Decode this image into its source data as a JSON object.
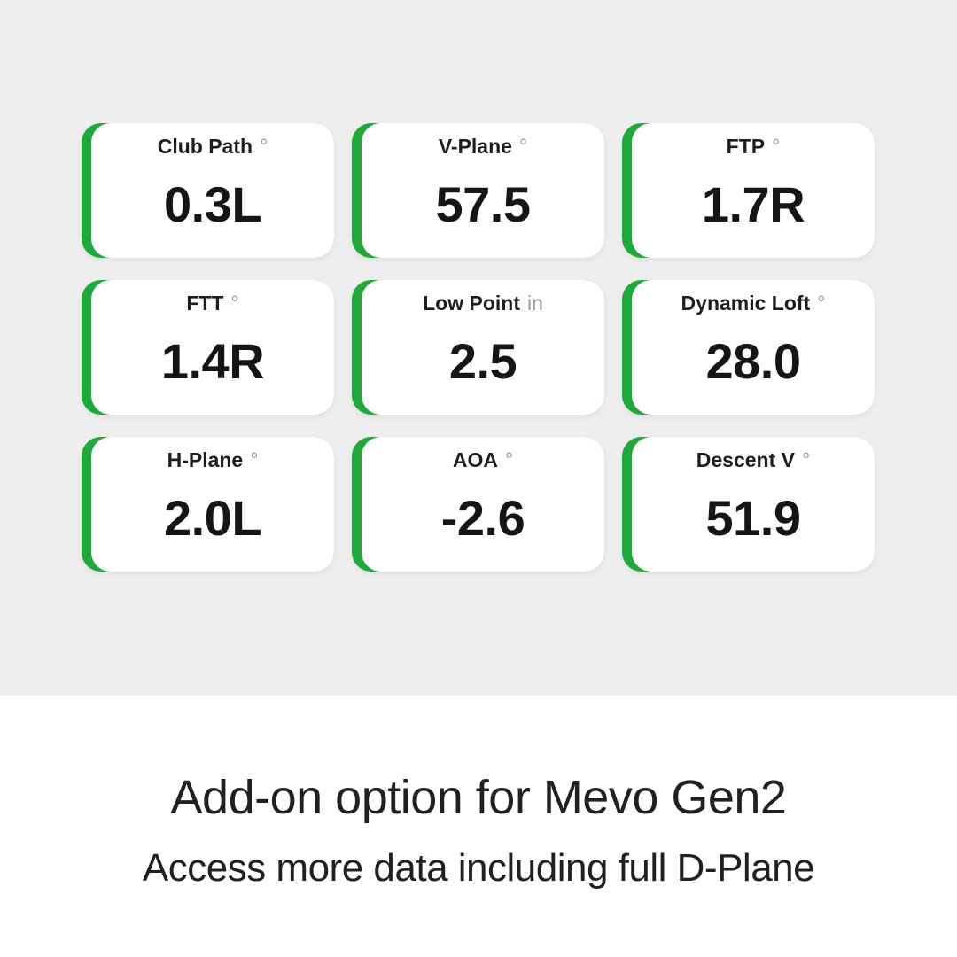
{
  "colors": {
    "background_top": "#eeeeee",
    "background_bottom": "#ffffff",
    "accent_green": "#21A83C",
    "card_background": "#ffffff",
    "label_text": "#1d1d1f",
    "value_text": "#151515",
    "unit_text": "#9b9b9b",
    "heading_text": "#1f2023"
  },
  "metrics": [
    {
      "label": "Club Path",
      "unit": "°",
      "value": "0.3L"
    },
    {
      "label": "V-Plane",
      "unit": "°",
      "value": "57.5"
    },
    {
      "label": "FTP",
      "unit": "°",
      "value": "1.7R"
    },
    {
      "label": "FTT",
      "unit": "°",
      "value": "1.4R"
    },
    {
      "label": "Low Point",
      "unit": "in",
      "value": "2.5"
    },
    {
      "label": "Dynamic Loft",
      "unit": "°",
      "value": "28.0"
    },
    {
      "label": "H-Plane",
      "unit": "°",
      "value": "2.0L"
    },
    {
      "label": "AOA",
      "unit": "°",
      "value": "-2.6"
    },
    {
      "label": "Descent V",
      "unit": "°",
      "value": "51.9"
    }
  ],
  "footer": {
    "heading": "Add-on option for Mevo Gen2",
    "subheading": "Access more data including full D-Plane"
  }
}
